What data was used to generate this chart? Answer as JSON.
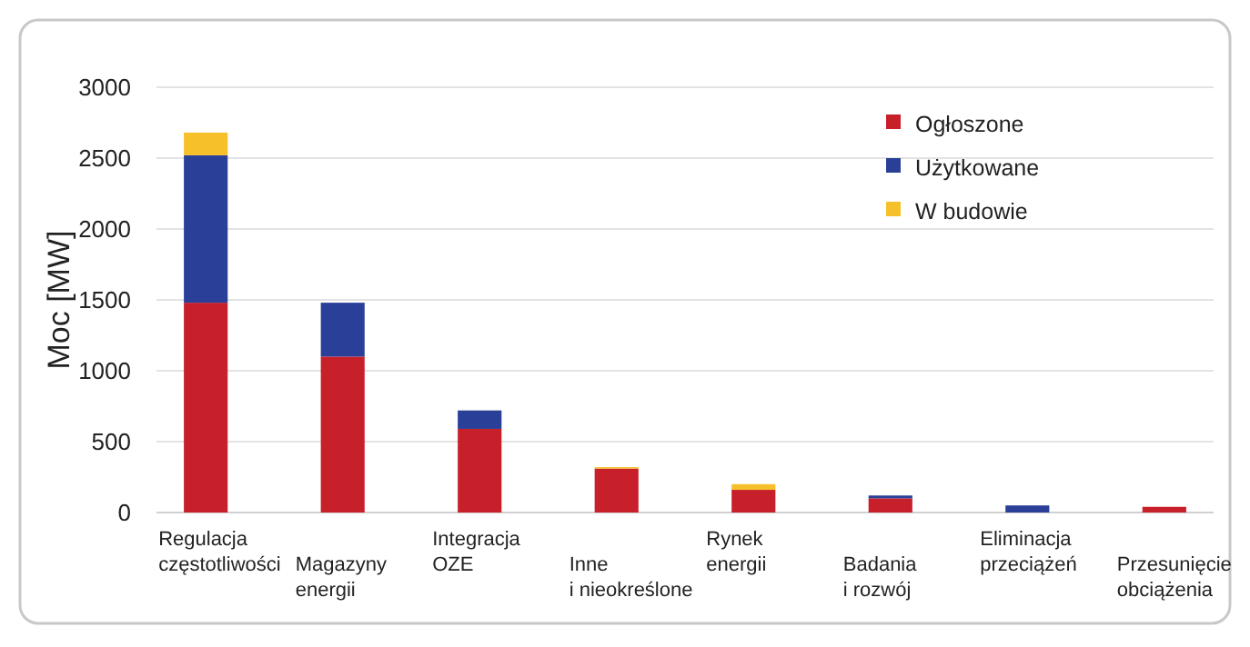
{
  "chart_data": {
    "type": "bar",
    "stacked": true,
    "ylabel": "Moc [MW]",
    "categories": [
      "Regulacja\nczęstotliwości",
      "Magazyny\nenergii",
      "Integracja\nOZE",
      "Inne\ni nieokreślone",
      "Rynek\nenergii",
      "Badania\ni rozwój",
      "Eliminacja\nprzeciążeń",
      "Przesunięcie\nobciążenia"
    ],
    "series": [
      {
        "name": "Ogłoszone",
        "color": "#c8202a",
        "values": [
          1480,
          1100,
          590,
          310,
          160,
          100,
          0,
          40
        ]
      },
      {
        "name": "Użytkowane",
        "color": "#2a3f98",
        "values": [
          1040,
          380,
          130,
          0,
          0,
          20,
          50,
          0
        ]
      },
      {
        "name": "W budowie",
        "color": "#f5c02a",
        "values": [
          160,
          0,
          0,
          10,
          40,
          0,
          0,
          0
        ]
      }
    ],
    "ylim": [
      0,
      3000
    ],
    "yticks": [
      0,
      500,
      1000,
      1500,
      2000,
      2500,
      3000
    ],
    "grid": "y",
    "legend": "top right"
  }
}
